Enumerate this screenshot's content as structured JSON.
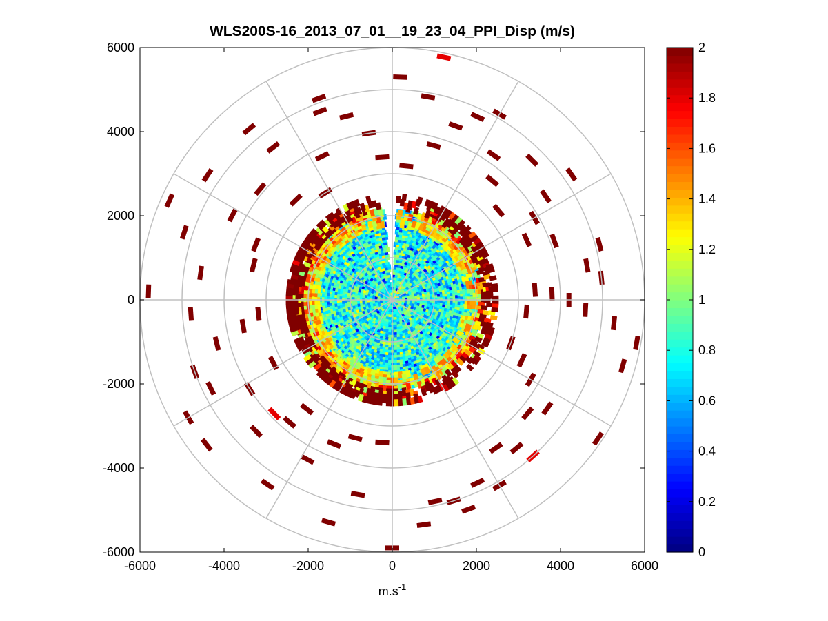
{
  "chart_data": {
    "type": "heatmap",
    "subtype": "polar-ppi",
    "title": "WLS200S-16_2013_07_01__19_23_04_PPI_Disp (m/s)",
    "xlabel": "m.s",
    "xlabel_superscript": "-1",
    "ylabel": "",
    "xlim": [
      -6000,
      6000
    ],
    "ylim": [
      -6000,
      6000
    ],
    "xticks": [
      -6000,
      -4000,
      -2000,
      0,
      2000,
      4000,
      6000
    ],
    "yticks": [
      6000,
      4000,
      2000,
      0,
      -2000,
      -4000,
      -6000
    ],
    "xtick_labels": [
      "-6000",
      "-4000",
      "-2000",
      "0",
      "2000",
      "4000",
      "6000"
    ],
    "ytick_labels": [
      "6000",
      "4000",
      "2000",
      "0",
      "-2000",
      "-4000",
      "-6000"
    ],
    "polar_grid": {
      "ring_radii": [
        1000,
        2000,
        3000,
        4000,
        5000,
        6000
      ],
      "spoke_angles_deg": [
        0,
        30,
        60,
        90,
        120,
        150,
        180,
        210,
        240,
        270,
        300,
        330
      ]
    },
    "colorbar": {
      "range": [
        0,
        2
      ],
      "ticks": [
        0,
        0.2,
        0.4,
        0.6,
        0.8,
        1,
        1.2,
        1.4,
        1.6,
        1.8,
        2
      ],
      "tick_labels": [
        "0",
        "0.2",
        "0.4",
        "0.6",
        "0.8",
        "1",
        "1.2",
        "1.4",
        "1.6",
        "1.8",
        "2"
      ],
      "colormap": "jet"
    },
    "field_description": {
      "inner_radius_max_m": 2100,
      "inner_value_range": [
        0.5,
        1.1
      ],
      "ring_band_m": [
        1800,
        2500
      ],
      "ring_value_range": [
        1.0,
        2.0
      ],
      "outer_sparse_value": 2.0,
      "gap_azimuth_deg": [
        -5,
        3
      ]
    },
    "outer_sparse_cells": [
      [
        160,
        5300,
        2
      ],
      [
        150,
        5100,
        2
      ],
      [
        163,
        5000,
        2
      ],
      [
        168,
        4900,
        2
      ],
      [
        155,
        4800,
        2
      ],
      [
        172,
        5400,
        2
      ],
      [
        140,
        4600,
        2
      ],
      [
        145,
        4300,
        2
      ],
      [
        130,
        4200,
        2
      ],
      [
        125,
        4500,
        2
      ],
      [
        120,
        3800,
        2
      ],
      [
        115,
        3400,
        2
      ],
      [
        110,
        3000,
        2
      ],
      [
        106,
        5700,
        2
      ],
      [
        100,
        5900,
        2
      ],
      [
        96,
        5300,
        2
      ],
      [
        93,
        4600,
        2
      ],
      [
        90,
        4200,
        2
      ],
      [
        88,
        3800,
        2
      ],
      [
        86,
        3400,
        2
      ],
      [
        84,
        5000,
        2
      ],
      [
        80,
        4700,
        2
      ],
      [
        75,
        5100,
        2
      ],
      [
        70,
        4100,
        2
      ],
      [
        66,
        3500,
        2
      ],
      [
        60,
        3900,
        2
      ],
      [
        56,
        4400,
        2
      ],
      [
        50,
        3300,
        2
      ],
      [
        45,
        4700,
        2
      ],
      [
        40,
        3700,
        2
      ],
      [
        35,
        4200,
        2
      ],
      [
        30,
        5100,
        2
      ],
      [
        25,
        4800,
        2
      ],
      [
        20,
        4400,
        2
      ],
      [
        15,
        3800,
        2
      ],
      [
        10,
        4900,
        2
      ],
      [
        6,
        3200,
        2
      ],
      [
        2,
        5300,
        2
      ],
      [
        -4,
        3400,
        2
      ],
      [
        -8,
        4000,
        2
      ],
      [
        -14,
        4500,
        2
      ],
      [
        -20,
        5100,
        2
      ],
      [
        -26,
        3800,
        2
      ],
      [
        -32,
        3000,
        2
      ],
      [
        -38,
        4600,
        2
      ],
      [
        -44,
        3300,
        2
      ],
      [
        -50,
        4100,
        2
      ],
      [
        -56,
        5300,
        2
      ],
      [
        -62,
        4300,
        2
      ],
      [
        -68,
        3500,
        2
      ],
      [
        -72,
        5200,
        2
      ],
      [
        -76,
        3400,
        2
      ],
      [
        -82,
        4600,
        2
      ],
      [
        -88,
        5800,
        2
      ],
      [
        -94,
        4800,
        2
      ],
      [
        -100,
        3600,
        2
      ],
      [
        -104,
        4300,
        2
      ],
      [
        -110,
        5000,
        2
      ],
      [
        -116,
        4800,
        2
      ],
      [
        -122,
        4000,
        2
      ],
      [
        -128,
        5600,
        2
      ],
      [
        -134,
        4500,
        2
      ],
      [
        -140,
        3800,
        2
      ],
      [
        -146,
        5300,
        2
      ],
      [
        -152,
        4300,
        2
      ],
      [
        -158,
        3700,
        2
      ],
      [
        -164,
        5500,
        2
      ],
      [
        -170,
        4700,
        2
      ],
      [
        -176,
        3400,
        2
      ],
      [
        -180,
        5900,
        2
      ],
      [
        -96,
        3200,
        2
      ],
      [
        -118,
        3200,
        2
      ],
      [
        -142,
        3300,
        2
      ],
      [
        -165,
        3400,
        2
      ],
      [
        12,
        5900,
        1.8
      ],
      [
        -134,
        3900,
        1.8
      ],
      [
        138,
        5000,
        1.8
      ],
      [
        -21,
        4800,
        2
      ],
      [
        -40,
        5300,
        2
      ],
      [
        55,
        5200,
        2
      ],
      [
        95,
        3200,
        2
      ],
      [
        124,
        5900,
        2
      ],
      [
        -120,
        5600,
        2
      ],
      [
        -66,
        5800,
        2
      ]
    ]
  }
}
